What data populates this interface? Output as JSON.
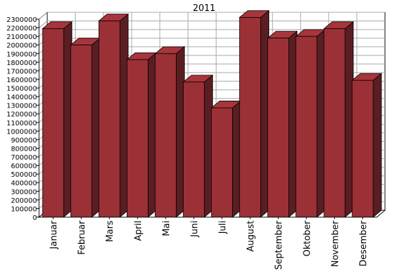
{
  "chart_data": {
    "type": "bar",
    "title": "2011",
    "xlabel": "",
    "ylabel": "",
    "categories": [
      "Januar",
      "Februar",
      "Mars",
      "April",
      "Mai",
      "Juni",
      "Juli",
      "August",
      "September",
      "Oktober",
      "November",
      "Desember"
    ],
    "values": [
      2190000,
      2000000,
      2280000,
      1830000,
      1900000,
      1570000,
      1270000,
      2320000,
      2080000,
      2100000,
      2190000,
      1590000
    ],
    "ylim": [
      0,
      2300000
    ],
    "ytick_step": 100000,
    "grid": true,
    "legend": "none",
    "colors": {
      "bar_front": "#9b3037",
      "bar_top": "#a8353c",
      "bar_side": "#5a1e22",
      "bar_outline": "#000000",
      "grid": "#a8a8a8",
      "back_wall": "#ffffff",
      "floor": "#ffffff"
    }
  }
}
